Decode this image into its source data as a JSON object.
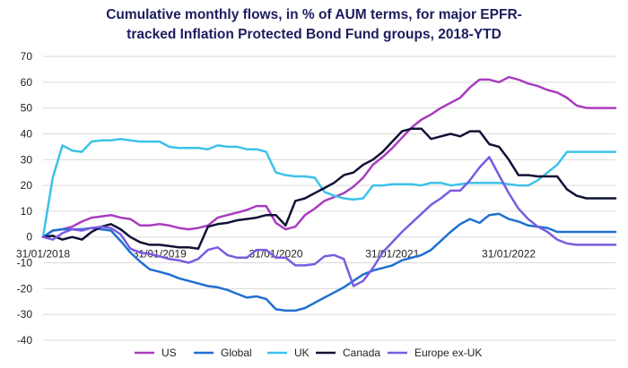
{
  "chart_data": {
    "type": "line",
    "title_line1": "Cumulative monthly flows, in % of AUM terms, for major EPFR-",
    "title_line2": "tracked Inflation Protected Bond Fund groups, 2018-YTD",
    "xlabel": "",
    "ylabel": "",
    "ylim": [
      -40,
      70
    ],
    "yticks": [
      -40,
      -30,
      -20,
      -10,
      0,
      10,
      20,
      30,
      40,
      50,
      60,
      70
    ],
    "xtick_labels": [
      "31/01/2018",
      "31/01/2019",
      "31/01/2020",
      "31/01/2021",
      "31/01/2022"
    ],
    "grid": "horizontal",
    "legend_position": "bottom",
    "x": [
      "2018-01",
      "2018-02",
      "2018-03",
      "2018-04",
      "2018-05",
      "2018-06",
      "2018-07",
      "2018-08",
      "2018-09",
      "2018-10",
      "2018-11",
      "2018-12",
      "2019-01",
      "2019-02",
      "2019-03",
      "2019-04",
      "2019-05",
      "2019-06",
      "2019-07",
      "2019-08",
      "2019-09",
      "2019-10",
      "2019-11",
      "2019-12",
      "2020-01",
      "2020-02",
      "2020-03",
      "2020-04",
      "2020-05",
      "2020-06",
      "2020-07",
      "2020-08",
      "2020-09",
      "2020-10",
      "2020-11",
      "2020-12",
      "2021-01",
      "2021-02",
      "2021-03",
      "2021-04",
      "2021-05",
      "2021-06",
      "2021-07",
      "2021-08",
      "2021-09",
      "2021-10",
      "2021-11",
      "2021-12",
      "2022-01",
      "2022-02",
      "2022-03",
      "2022-04",
      "2022-05",
      "2022-06",
      "2022-07",
      "2022-08",
      "2022-09",
      "2022-10",
      "2022-11",
      "2022-12"
    ],
    "series": [
      {
        "name": "US",
        "color": "#a83dbe",
        "values": [
          0,
          2.5,
          3,
          4,
          6,
          7.5,
          8,
          8.5,
          7.5,
          7,
          4.5,
          4.5,
          5,
          4.5,
          3.5,
          3,
          3.5,
          4.5,
          7.5,
          8.5,
          9.5,
          10.5,
          12,
          12,
          5.5,
          3,
          4,
          8.5,
          11,
          14,
          15.5,
          17,
          19.5,
          23,
          28,
          31,
          34.5,
          38.5,
          42.5,
          45.5,
          47.5,
          50,
          52,
          54,
          58,
          61,
          61,
          60,
          62,
          61,
          59.5,
          58.5,
          57,
          56,
          54,
          51,
          50,
          50,
          50,
          50
        ]
      },
      {
        "name": "Global",
        "color": "#1f6fd1",
        "values": [
          0,
          2.5,
          3,
          3,
          3,
          3.5,
          3,
          2.5,
          -1.5,
          -6,
          -9.5,
          -12.5,
          -13.5,
          -14.5,
          -16,
          -17,
          -18,
          -19,
          -19.5,
          -20.5,
          -22,
          -23.5,
          -23,
          -24,
          -28,
          -28.5,
          -28.5,
          -27.5,
          -25.5,
          -23.5,
          -21.5,
          -19.5,
          -17,
          -14.5,
          -13,
          -12,
          -11,
          -9,
          -8,
          -7,
          -5,
          -1.5,
          2,
          5,
          7,
          5.5,
          8.5,
          9,
          7,
          6,
          4.5,
          4,
          3.5,
          2,
          2,
          2,
          2,
          2,
          2,
          2
        ]
      },
      {
        "name": "UK",
        "color": "#3cc2ea",
        "values": [
          0,
          23,
          35.5,
          33.5,
          33,
          37,
          37.5,
          37.5,
          38,
          37.5,
          37,
          37,
          37,
          35,
          34.5,
          34.5,
          34.5,
          34,
          35.5,
          35,
          35,
          34,
          34,
          33,
          25,
          24,
          23.5,
          23.5,
          23,
          17.5,
          16,
          15,
          14.5,
          15,
          20,
          20,
          20.5,
          20.5,
          20.5,
          20,
          21,
          21,
          20,
          20.5,
          21,
          21,
          21,
          21,
          20.5,
          20,
          20,
          22,
          25,
          28,
          33,
          33,
          33,
          33,
          33,
          33
        ]
      },
      {
        "name": "Canada",
        "color": "#101236",
        "values": [
          0,
          0.5,
          -1,
          0,
          -1,
          2,
          4,
          5,
          3,
          0,
          -2,
          -3,
          -3,
          -3.5,
          -4,
          -4,
          -4.5,
          4,
          5,
          5.5,
          6.5,
          7,
          7.5,
          8.5,
          8.5,
          4.5,
          14,
          15,
          17,
          19,
          21,
          24,
          25,
          28,
          30,
          33,
          37,
          41,
          42,
          42,
          38,
          39,
          40,
          39,
          41,
          41,
          36,
          35,
          30,
          24,
          24,
          23.5,
          23.5,
          23.5,
          18.5,
          16,
          15,
          15,
          15,
          15
        ]
      },
      {
        "name": "Europe ex-UK",
        "color": "#7b5be0",
        "values": [
          0,
          -1,
          1.5,
          3,
          2.5,
          3.5,
          4,
          3.5,
          1,
          -4.5,
          -6,
          -6.5,
          -7.5,
          -8.5,
          -9,
          -10,
          -8.5,
          -5,
          -4,
          -7,
          -8,
          -8,
          -5,
          -5,
          -8,
          -8,
          -11,
          -11,
          -10.5,
          -7.5,
          -7,
          -8.5,
          -19,
          -17,
          -12,
          -6,
          -2,
          2,
          5.5,
          9,
          12.5,
          15,
          18,
          18,
          22,
          27,
          31,
          24,
          17,
          11,
          7,
          4,
          2,
          -1,
          -2.5,
          -3,
          -3,
          -3,
          -3,
          -3
        ]
      }
    ]
  }
}
